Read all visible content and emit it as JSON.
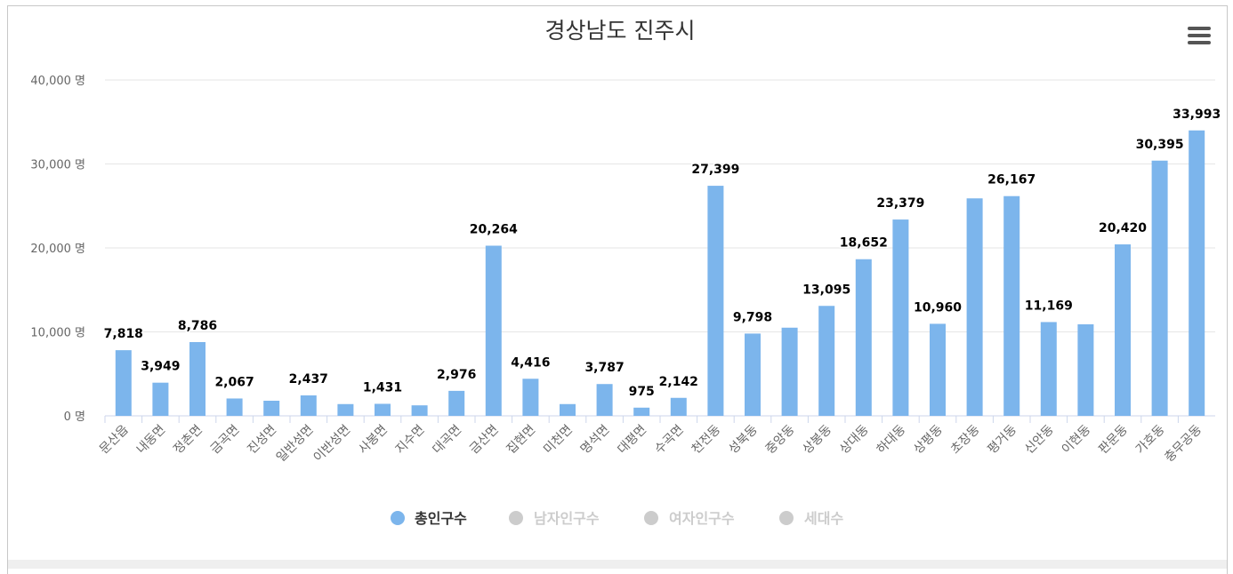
{
  "chart_data": {
    "type": "bar",
    "title": "경상남도 진주시",
    "categories": [
      "문산읍",
      "내동면",
      "정촌면",
      "금곡면",
      "진성면",
      "일반성면",
      "이반성면",
      "사봉면",
      "지수면",
      "대곡면",
      "금산면",
      "집현면",
      "미천면",
      "명석면",
      "대평면",
      "수곡면",
      "천전동",
      "성북동",
      "중앙동",
      "상봉동",
      "상대동",
      "하대동",
      "상평동",
      "초장동",
      "평거동",
      "신안동",
      "이현동",
      "판문동",
      "가호동",
      "충무공동"
    ],
    "series": [
      {
        "name": "총인구수",
        "color": "#7cb5ec",
        "values": [
          7818,
          3949,
          8786,
          2067,
          1800,
          2437,
          1400,
          1431,
          1250,
          2976,
          20264,
          4416,
          1400,
          3787,
          975,
          2142,
          27399,
          9798,
          10500,
          13095,
          18652,
          23379,
          10960,
          25900,
          26167,
          11169,
          10900,
          20420,
          30395,
          33993
        ],
        "labels": [
          "7,818",
          "3,949",
          "8,786",
          "2,067",
          "",
          "2,437",
          "",
          "1,431",
          "",
          "2,976",
          "20,264",
          "4,416",
          "",
          "3,787",
          "975",
          "2,142",
          "27,399",
          "9,798",
          "",
          "13,095",
          "18,652",
          "23,379",
          "10,960",
          "",
          "26,167",
          "11,169",
          "",
          "20,420",
          "30,395",
          "33,993"
        ]
      }
    ],
    "y_ticks": [
      {
        "value": 0,
        "label": "0 명"
      },
      {
        "value": 10000,
        "label": "10,000 명"
      },
      {
        "value": 20000,
        "label": "20,000 명"
      },
      {
        "value": 30000,
        "label": "30,000 명"
      },
      {
        "value": 40000,
        "label": "40,000 명"
      }
    ],
    "ylim": [
      0,
      40000
    ],
    "legend": [
      {
        "label": "총인구수",
        "color": "#7cb5ec",
        "active": true
      },
      {
        "label": "남자인구수",
        "color": "#cccccc",
        "active": false
      },
      {
        "label": "여자인구수",
        "color": "#cccccc",
        "active": false
      },
      {
        "label": "세대수",
        "color": "#cccccc",
        "active": false
      }
    ],
    "legend_position": "bottom-center",
    "grid": true
  }
}
